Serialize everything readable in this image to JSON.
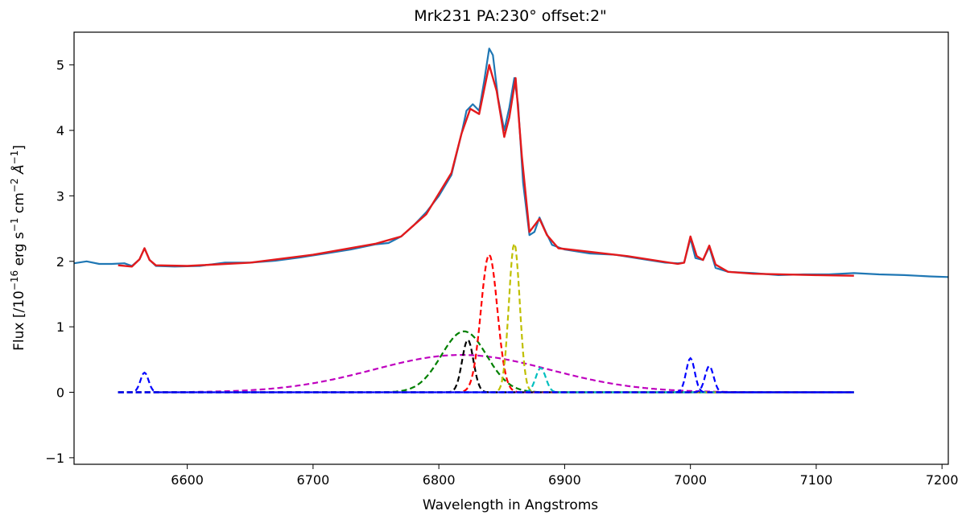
{
  "chart_data": {
    "type": "line",
    "title": "Mrk231 PA:230° offset:2\"",
    "xlabel": "Wavelength in Angstroms",
    "ylabel_parts": {
      "prefix": "Flux  [/10",
      "exp1": "−16",
      "mid1": " erg s",
      "exp2": "−1",
      "mid2": " cm",
      "exp3": "−2",
      "mid3": " Å",
      "exp4": "−1",
      "suffix": "]"
    },
    "xlim": [
      6510,
      7205
    ],
    "ylim": [
      -1.1,
      5.5
    ],
    "xticks": [
      6600,
      6700,
      6800,
      6900,
      7000,
      7100,
      7200
    ],
    "yticks": [
      -1,
      0,
      1,
      2,
      3,
      4,
      5
    ],
    "ytick_labels": [
      "−1",
      "0",
      "1",
      "2",
      "3",
      "4",
      "5"
    ],
    "grid": false,
    "colors": {
      "observed": "#1f77b4",
      "fit": "#e31a1c",
      "blue": "#0000ff",
      "green": "#008000",
      "black": "#000000",
      "red": "#ff0000",
      "yellow": "#bfbf00",
      "cyan": "#00bfbf",
      "magenta": "#bf00bf"
    },
    "observed_points": [
      [
        6510,
        1.97
      ],
      [
        6520,
        2.0
      ],
      [
        6530,
        1.96
      ],
      [
        6540,
        1.96
      ],
      [
        6550,
        1.97
      ],
      [
        6556,
        1.93
      ],
      [
        6562,
        2.03
      ],
      [
        6566,
        2.2
      ],
      [
        6570,
        2.02
      ],
      [
        6575,
        1.93
      ],
      [
        6590,
        1.92
      ],
      [
        6610,
        1.93
      ],
      [
        6630,
        1.98
      ],
      [
        6650,
        1.98
      ],
      [
        6670,
        2.01
      ],
      [
        6690,
        2.06
      ],
      [
        6710,
        2.12
      ],
      [
        6730,
        2.18
      ],
      [
        6750,
        2.26
      ],
      [
        6760,
        2.28
      ],
      [
        6770,
        2.38
      ],
      [
        6780,
        2.55
      ],
      [
        6790,
        2.75
      ],
      [
        6800,
        3.0
      ],
      [
        6810,
        3.32
      ],
      [
        6818,
        3.95
      ],
      [
        6822,
        4.3
      ],
      [
        6827,
        4.4
      ],
      [
        6832,
        4.3
      ],
      [
        6836,
        4.75
      ],
      [
        6840,
        5.25
      ],
      [
        6843,
        5.15
      ],
      [
        6847,
        4.5
      ],
      [
        6852,
        4.0
      ],
      [
        6856,
        4.35
      ],
      [
        6860,
        4.8
      ],
      [
        6863,
        4.4
      ],
      [
        6867,
        3.2
      ],
      [
        6872,
        2.4
      ],
      [
        6876,
        2.45
      ],
      [
        6880,
        2.67
      ],
      [
        6885,
        2.45
      ],
      [
        6890,
        2.25
      ],
      [
        6900,
        2.18
      ],
      [
        6920,
        2.12
      ],
      [
        6940,
        2.1
      ],
      [
        6960,
        2.04
      ],
      [
        6980,
        1.98
      ],
      [
        6990,
        1.97
      ],
      [
        6995,
        1.98
      ],
      [
        7000,
        2.35
      ],
      [
        7004,
        2.05
      ],
      [
        7010,
        2.02
      ],
      [
        7015,
        2.22
      ],
      [
        7020,
        1.9
      ],
      [
        7030,
        1.84
      ],
      [
        7050,
        1.82
      ],
      [
        7070,
        1.79
      ],
      [
        7090,
        1.8
      ],
      [
        7110,
        1.8
      ],
      [
        7130,
        1.82
      ],
      [
        7150,
        1.8
      ],
      [
        7170,
        1.79
      ],
      [
        7190,
        1.77
      ],
      [
        7205,
        1.76
      ]
    ],
    "fit_points": [
      [
        6545,
        1.94
      ],
      [
        6556,
        1.92
      ],
      [
        6562,
        2.03
      ],
      [
        6566,
        2.2
      ],
      [
        6570,
        2.02
      ],
      [
        6575,
        1.94
      ],
      [
        6600,
        1.93
      ],
      [
        6650,
        1.98
      ],
      [
        6700,
        2.1
      ],
      [
        6750,
        2.27
      ],
      [
        6770,
        2.38
      ],
      [
        6790,
        2.72
      ],
      [
        6810,
        3.35
      ],
      [
        6818,
        3.95
      ],
      [
        6825,
        4.33
      ],
      [
        6832,
        4.25
      ],
      [
        6840,
        5.0
      ],
      [
        6846,
        4.6
      ],
      [
        6852,
        3.9
      ],
      [
        6856,
        4.2
      ],
      [
        6861,
        4.8
      ],
      [
        6866,
        3.6
      ],
      [
        6872,
        2.45
      ],
      [
        6880,
        2.65
      ],
      [
        6886,
        2.4
      ],
      [
        6895,
        2.2
      ],
      [
        6950,
        2.08
      ],
      [
        6990,
        1.96
      ],
      [
        6995,
        1.98
      ],
      [
        7000,
        2.38
      ],
      [
        7005,
        2.08
      ],
      [
        7010,
        2.02
      ],
      [
        7015,
        2.24
      ],
      [
        7020,
        1.95
      ],
      [
        7030,
        1.84
      ],
      [
        7050,
        1.81
      ],
      [
        7100,
        1.79
      ],
      [
        7130,
        1.78
      ]
    ],
    "gaussians": [
      {
        "color": "blue",
        "center": 6566,
        "amp": 0.3,
        "sigma": 3.2
      },
      {
        "color": "magenta",
        "center": 6818,
        "amp": 0.57,
        "sigma": 70
      },
      {
        "color": "green",
        "center": 6820,
        "amp": 0.93,
        "sigma": 18
      },
      {
        "color": "black",
        "center": 6823,
        "amp": 0.8,
        "sigma": 4.5
      },
      {
        "color": "red",
        "center": 6840,
        "amp": 2.1,
        "sigma": 6.5
      },
      {
        "color": "yellow",
        "center": 6860,
        "amp": 2.27,
        "sigma": 4.3
      },
      {
        "color": "cyan",
        "center": 6881,
        "amp": 0.37,
        "sigma": 4.0
      },
      {
        "color": "blue",
        "center": 7000,
        "amp": 0.52,
        "sigma": 3.4
      },
      {
        "color": "blue",
        "center": 7015,
        "amp": 0.4,
        "sigma": 3.4
      }
    ],
    "gaussian_x_range": [
      6545,
      7130
    ]
  }
}
